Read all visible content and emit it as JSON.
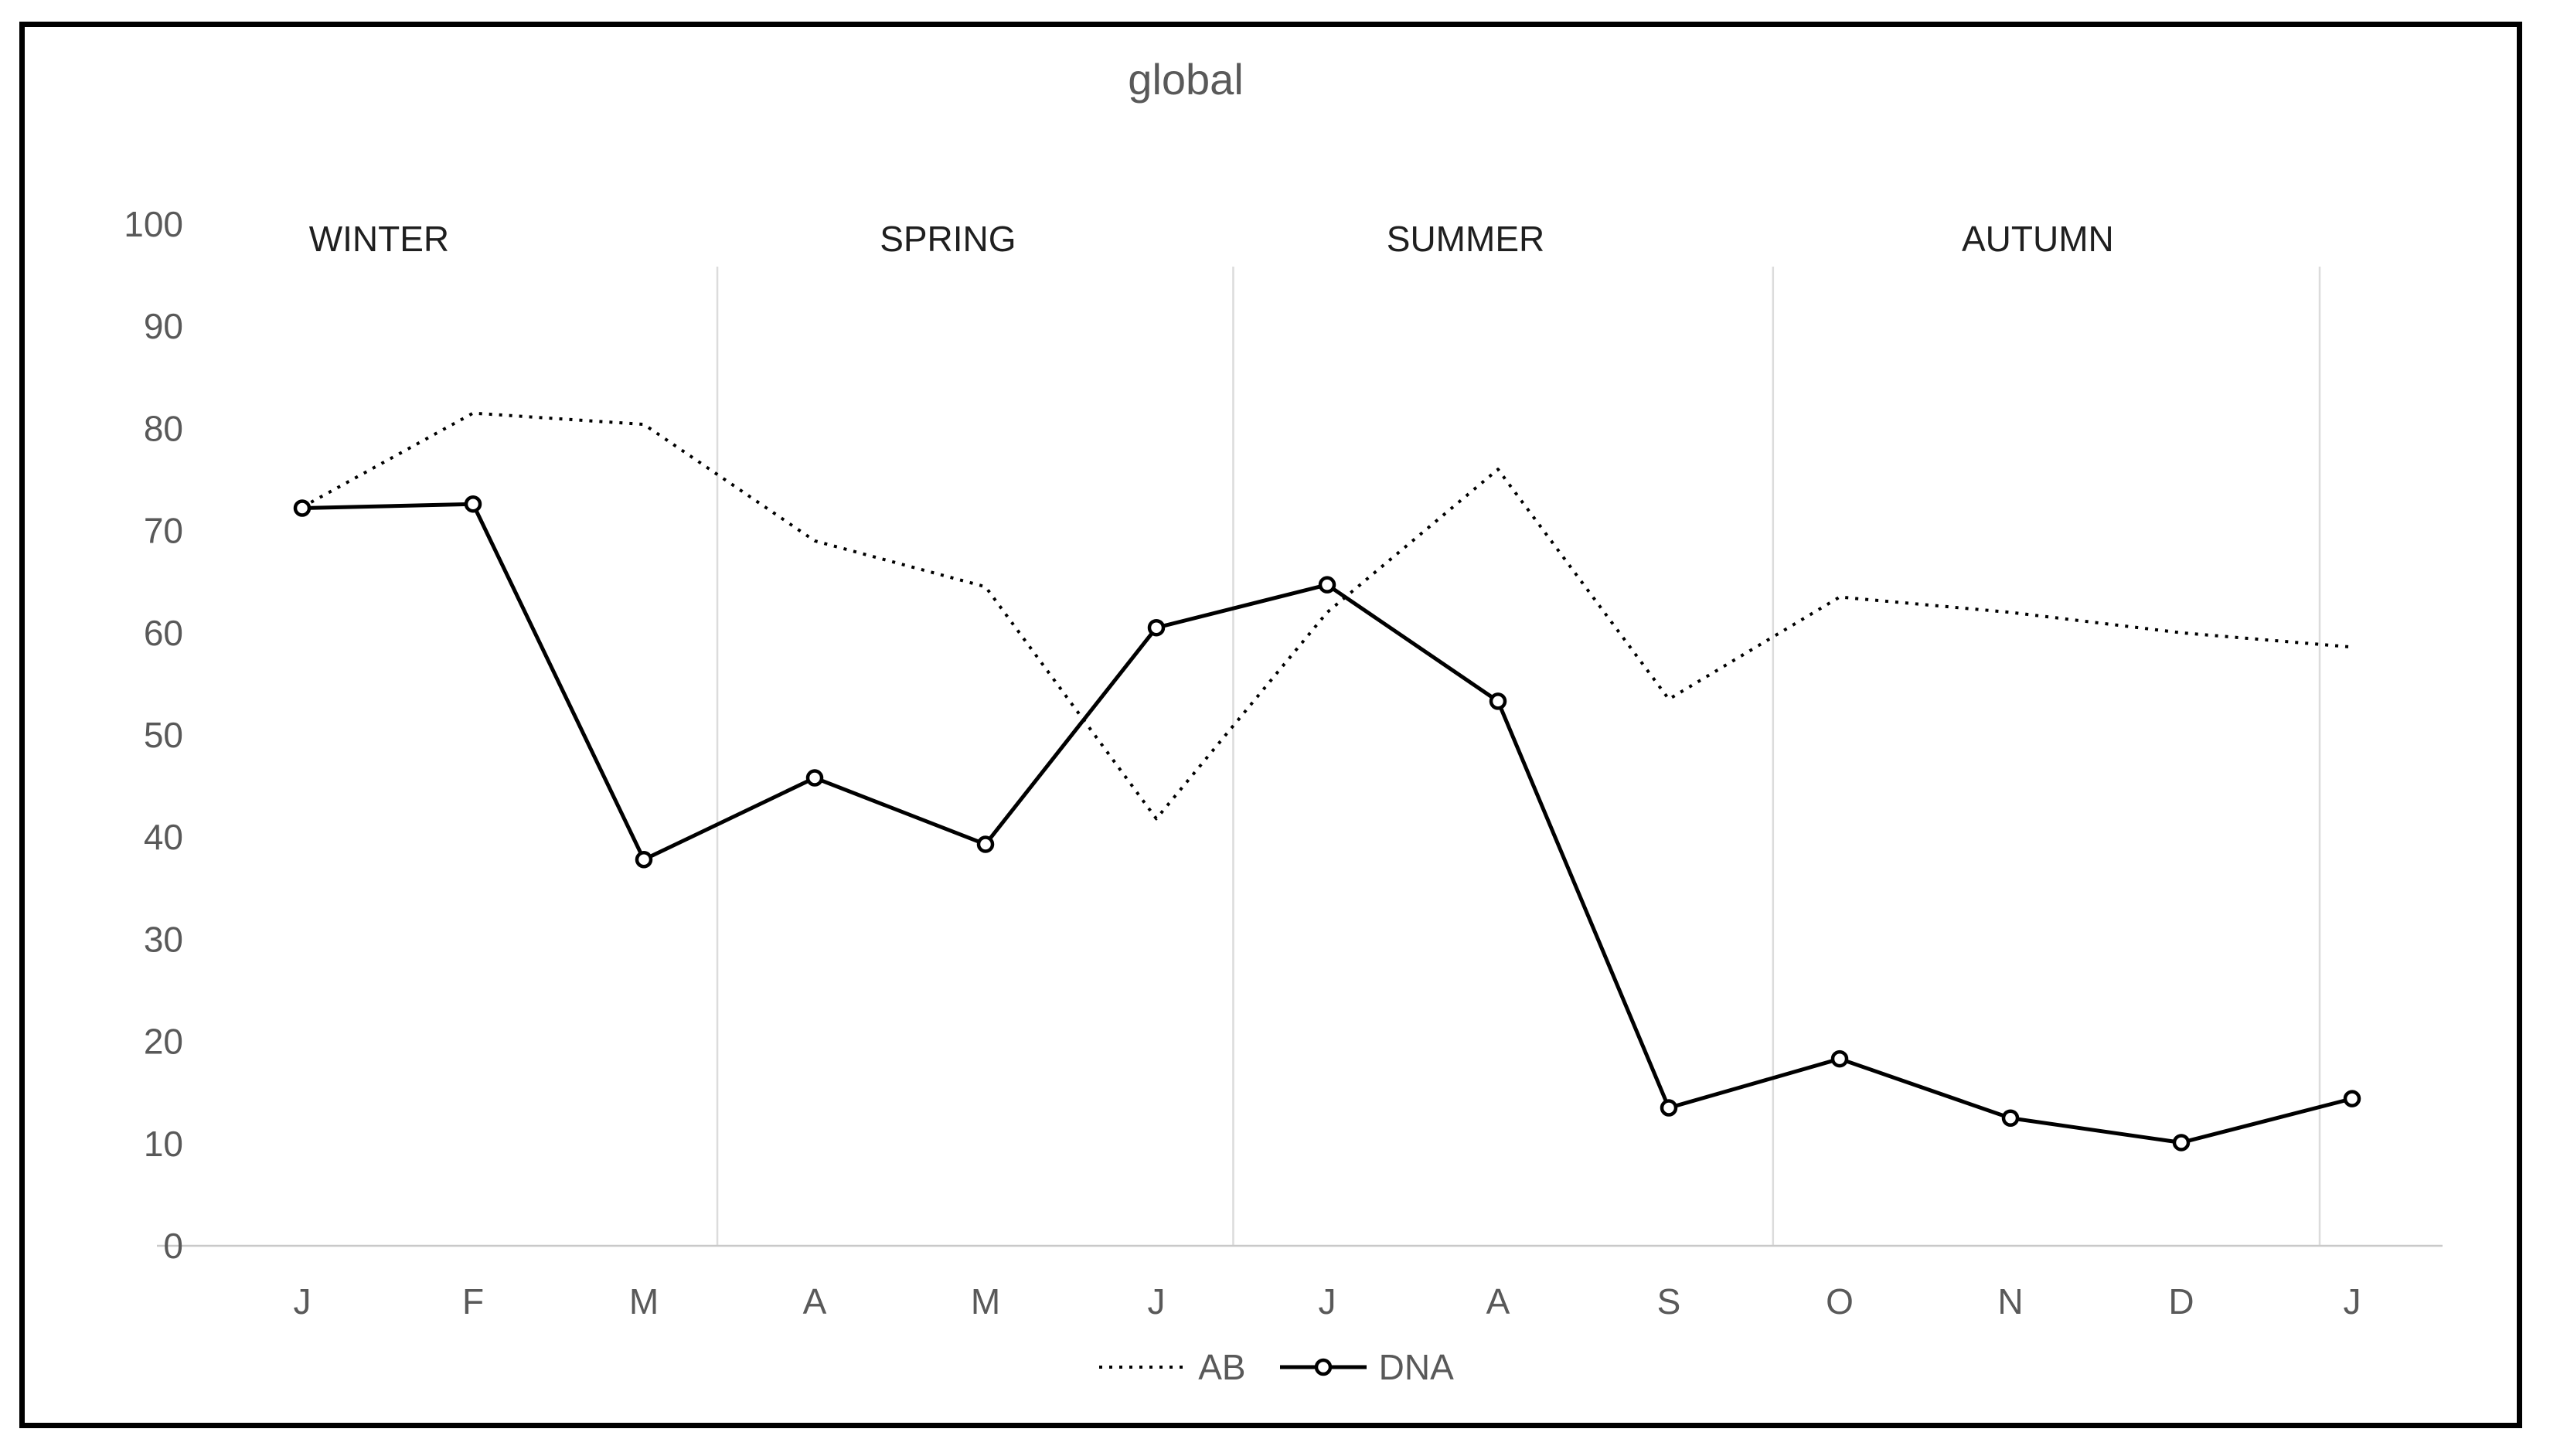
{
  "chart_data": {
    "type": "line",
    "title": "global",
    "categories": [
      "J",
      "F",
      "M",
      "A",
      "M",
      "J",
      "J",
      "A",
      "S",
      "O",
      "N",
      "D",
      "J"
    ],
    "y_axis": {
      "min": 0,
      "max": 100,
      "step": 10,
      "tick_labels": [
        "0",
        "10",
        "20",
        "30",
        "40",
        "50",
        "60",
        "70",
        "80",
        "90",
        "100"
      ]
    },
    "season_labels": [
      {
        "label": "WINTER",
        "pos": 0.45
      },
      {
        "label": "SPRING",
        "pos": 3.78
      },
      {
        "label": "SUMMER",
        "pos": 6.81
      },
      {
        "label": "AUTUMN",
        "pos": 10.16
      }
    ],
    "season_dividers": [
      2.43,
      5.45,
      8.61,
      11.81
    ],
    "series": [
      {
        "name": "AB",
        "line_style": "dotted",
        "marker": "none",
        "color": "#000000",
        "values": [
          72.3,
          81.5,
          80.4,
          69,
          64.5,
          41.8,
          62,
          76,
          53.5,
          63.5,
          62,
          60,
          58.6
        ]
      },
      {
        "name": "DNA",
        "line_style": "solid",
        "marker": "open-circle",
        "color": "#000000",
        "values": [
          72.2,
          72.6,
          37.8,
          45.8,
          39.3,
          60.5,
          64.7,
          53.3,
          13.5,
          18.3,
          12.5,
          10.1,
          14.4
        ]
      }
    ],
    "legend_position": "bottom",
    "grid": "vertical-season-dividers-only"
  },
  "colors": {
    "text_gray": "#595959",
    "season_text": "#1f1f1f",
    "axis_line": "#c9c9c9",
    "divider": "#dcdcdc",
    "series_line": "#000000",
    "background": "#ffffff",
    "border": "#000000"
  }
}
